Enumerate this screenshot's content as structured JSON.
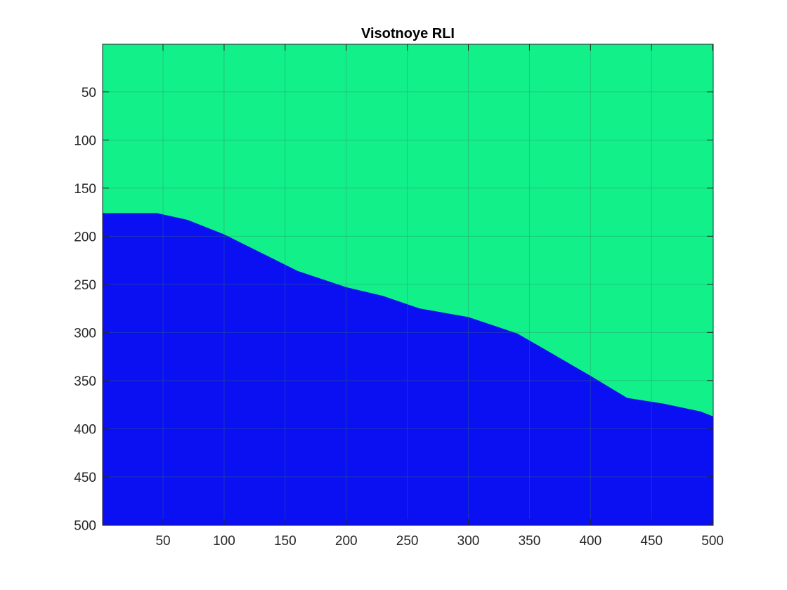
{
  "chart_data": {
    "type": "heatmap",
    "title": "Visotnoye RLI",
    "xlabel": "",
    "ylabel": "",
    "xlim": [
      0.5,
      500.5
    ],
    "ylim": [
      0.5,
      500.5
    ],
    "y_reversed": true,
    "grid": true,
    "x_ticks": [
      50,
      100,
      150,
      200,
      250,
      300,
      350,
      400,
      450,
      500
    ],
    "y_ticks": [
      50,
      100,
      150,
      200,
      250,
      300,
      350,
      400,
      450,
      500
    ],
    "colors": {
      "upper_region": "#12f08a",
      "lower_region": "#0a10f2",
      "grid": "#3a7a5a",
      "axis": "#262626"
    },
    "regions": [
      {
        "color_key": "upper_region",
        "label": ""
      },
      {
        "color_key": "lower_region",
        "label": ""
      }
    ],
    "boundary": {
      "x": [
        1,
        45,
        70,
        100,
        130,
        160,
        200,
        230,
        260,
        300,
        340,
        370,
        400,
        430,
        460,
        490,
        500
      ],
      "y": [
        176,
        176,
        183,
        198,
        217,
        236,
        253,
        262,
        275,
        284,
        301,
        323,
        345,
        368,
        374,
        382,
        387
      ]
    }
  }
}
